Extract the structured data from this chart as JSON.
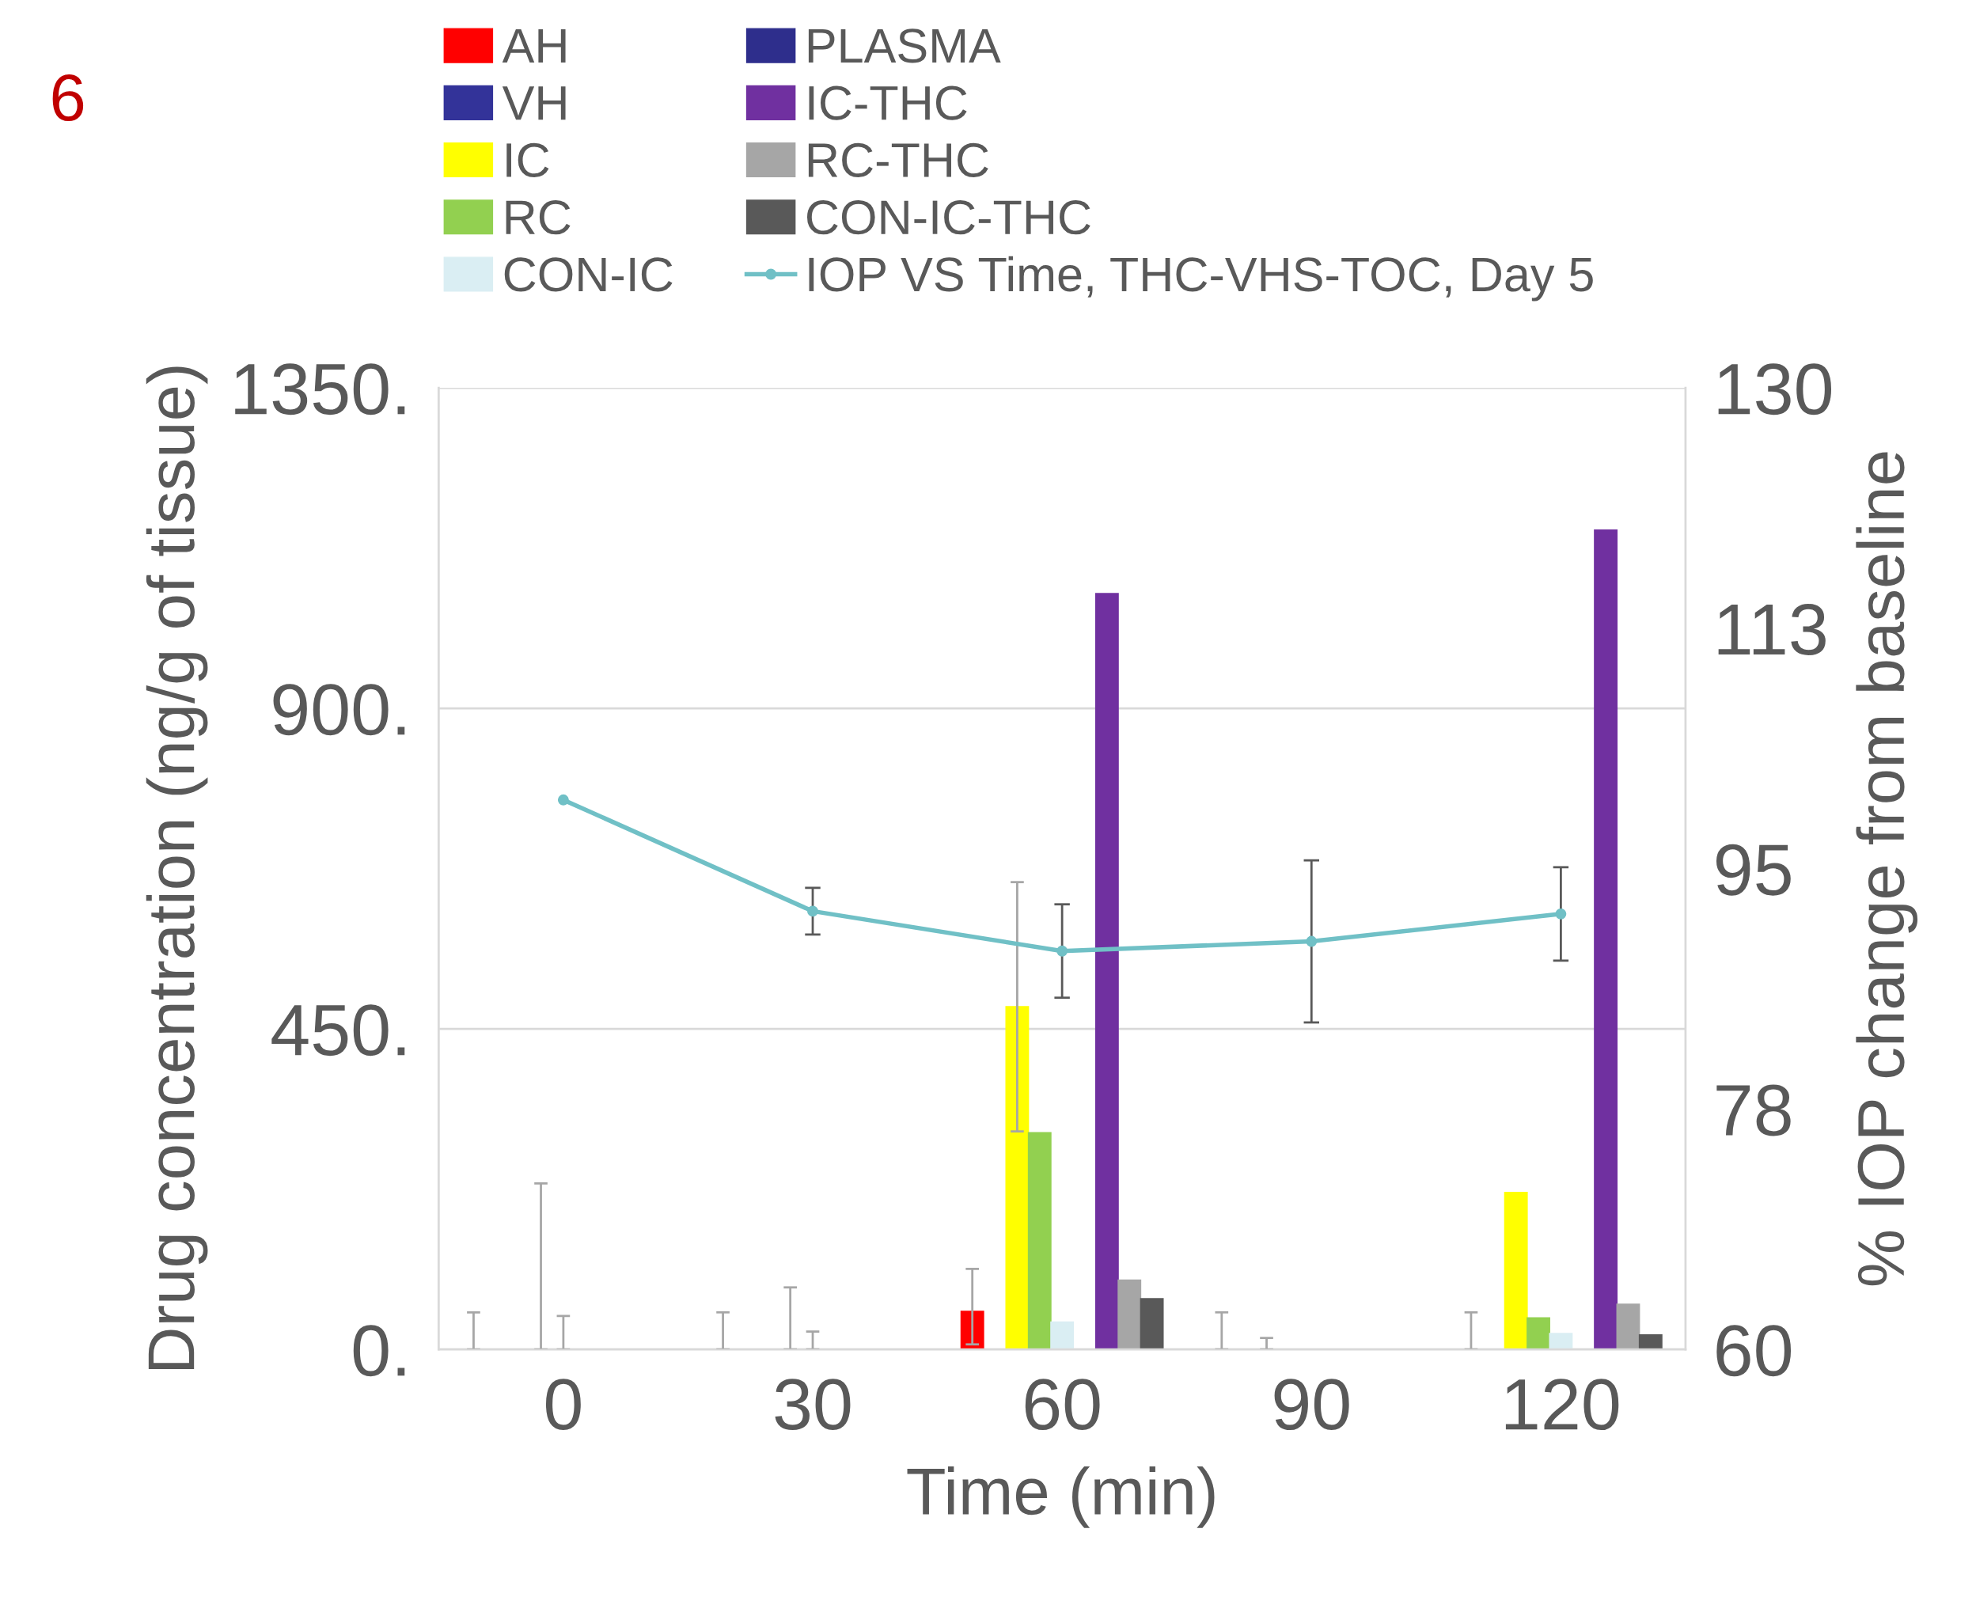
{
  "chart_data": {
    "type": "bar",
    "xlabel": "Time (min)",
    "ylabel": "Drug concentration (ng/g of tissue)",
    "y2label": "% IOP change from baseline",
    "annotations": [
      "6"
    ],
    "categories": [
      "0",
      "30",
      "60",
      "90",
      "120"
    ],
    "ylim": [
      0,
      1350
    ],
    "yticks": [
      {
        "value": 0,
        "label": "0."
      },
      {
        "value": 450,
        "label": "450."
      },
      {
        "value": 900,
        "label": "900."
      },
      {
        "value": 1350,
        "label": "1350."
      }
    ],
    "y2lim": [
      60,
      130
    ],
    "y2ticks": [
      60,
      {
        "value": 77.5,
        "label": "78"
      },
      95,
      {
        "value": 112.5,
        "label": "113"
      },
      130
    ],
    "grid": "y",
    "legend": "top",
    "series": [
      {
        "name": "AH",
        "color": "#ff0000",
        "values": [
          0,
          0,
          53,
          0,
          0
        ],
        "errors": [
          [
            0,
            52
          ],
          [
            0,
            52
          ],
          [
            7,
            113
          ],
          [
            0,
            52
          ],
          [
            0,
            52
          ]
        ]
      },
      {
        "name": "VH",
        "color": "#333399",
        "values": [
          0,
          0,
          0,
          0,
          0
        ]
      },
      {
        "name": "IC",
        "color": "#ffff00",
        "values": [
          0,
          0,
          481,
          0,
          220
        ],
        "errors": [
          null,
          null,
          [
            306,
            656
          ],
          [
            0,
            16
          ],
          null
        ]
      },
      {
        "name": "RC",
        "color": "#92d050",
        "values": [
          0,
          0,
          304,
          0,
          44
        ],
        "errors": [
          [
            0,
            233
          ],
          [
            0,
            87
          ],
          null,
          null,
          null
        ]
      },
      {
        "name": "CON-IC",
        "color": "#daeef3",
        "values": [
          0,
          0,
          38,
          0,
          22
        ],
        "errors": [
          [
            0,
            47
          ],
          [
            0,
            25
          ],
          null,
          null,
          null
        ]
      },
      {
        "name": "PLASMA",
        "color": "#2e2e8c",
        "values": [
          0,
          0,
          0,
          0,
          0
        ]
      },
      {
        "name": "IC-THC",
        "color": "#7030a0",
        "values": [
          0,
          0,
          1061,
          0,
          1150
        ]
      },
      {
        "name": "RC-THC",
        "color": "#a6a6a6",
        "values": [
          0,
          0,
          97,
          0,
          63
        ]
      },
      {
        "name": "CON-IC-THC",
        "color": "#595959",
        "values": [
          0,
          0,
          71,
          0,
          20
        ]
      },
      {
        "name": "IOP VS Time, THC-VHS-TOC, Day 5",
        "type": "line",
        "axis": "y2",
        "color": "#70c0c6",
        "marker": "circle",
        "values": [
          100,
          91.9,
          89.0,
          89.7,
          91.7
        ],
        "errors": [
          null,
          1.7,
          3.4,
          5.9,
          3.4
        ]
      }
    ]
  }
}
